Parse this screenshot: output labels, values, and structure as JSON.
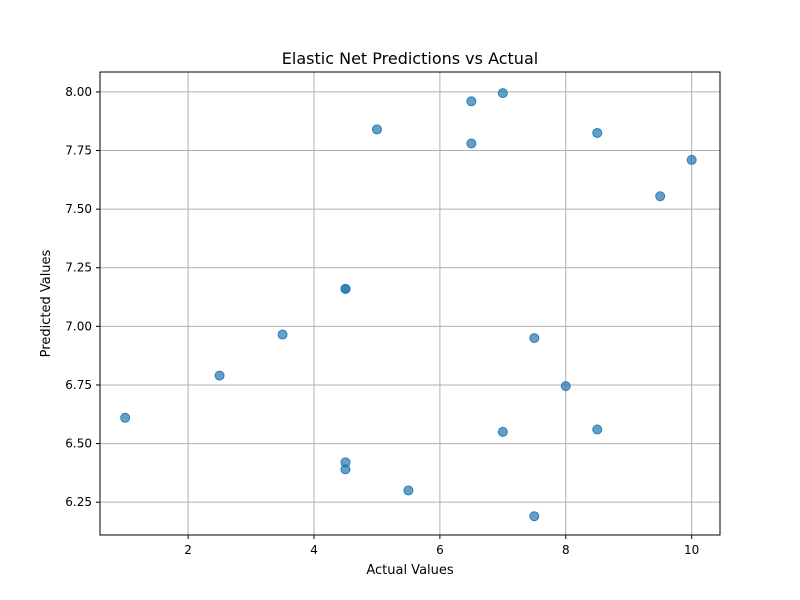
{
  "chart_data": {
    "type": "scatter",
    "title": "Elastic Net Predictions vs Actual",
    "xlabel": "Actual Values",
    "ylabel": "Predicted Values",
    "xlim": [
      0.6,
      10.45
    ],
    "ylim": [
      6.11,
      8.085
    ],
    "xticks": [
      2,
      4,
      6,
      8,
      10
    ],
    "xtick_labels": [
      "2",
      "4",
      "6",
      "8",
      "10"
    ],
    "yticks": [
      6.25,
      6.5,
      6.75,
      7.0,
      7.25,
      7.5,
      7.75,
      8.0
    ],
    "ytick_labels": [
      "6.25",
      "6.50",
      "6.75",
      "7.00",
      "7.25",
      "7.50",
      "7.75",
      "8.00"
    ],
    "grid": true,
    "marker_color": "#1f77b4",
    "marker_opacity": 0.7,
    "series": [
      {
        "points": [
          {
            "x": 1.0,
            "y": 6.61
          },
          {
            "x": 2.5,
            "y": 6.79
          },
          {
            "x": 3.5,
            "y": 6.965
          },
          {
            "x": 4.5,
            "y": 7.16
          },
          {
            "x": 4.5,
            "y": 7.16
          },
          {
            "x": 4.5,
            "y": 6.42
          },
          {
            "x": 4.5,
            "y": 6.39
          },
          {
            "x": 5.0,
            "y": 7.84
          },
          {
            "x": 5.5,
            "y": 6.3
          },
          {
            "x": 6.5,
            "y": 7.96
          },
          {
            "x": 6.5,
            "y": 7.78
          },
          {
            "x": 7.0,
            "y": 7.995
          },
          {
            "x": 7.0,
            "y": 6.55
          },
          {
            "x": 7.5,
            "y": 6.95
          },
          {
            "x": 7.5,
            "y": 6.19
          },
          {
            "x": 8.0,
            "y": 6.745
          },
          {
            "x": 8.5,
            "y": 7.825
          },
          {
            "x": 8.5,
            "y": 6.56
          },
          {
            "x": 9.5,
            "y": 7.555
          },
          {
            "x": 10.0,
            "y": 7.71
          }
        ]
      }
    ]
  }
}
